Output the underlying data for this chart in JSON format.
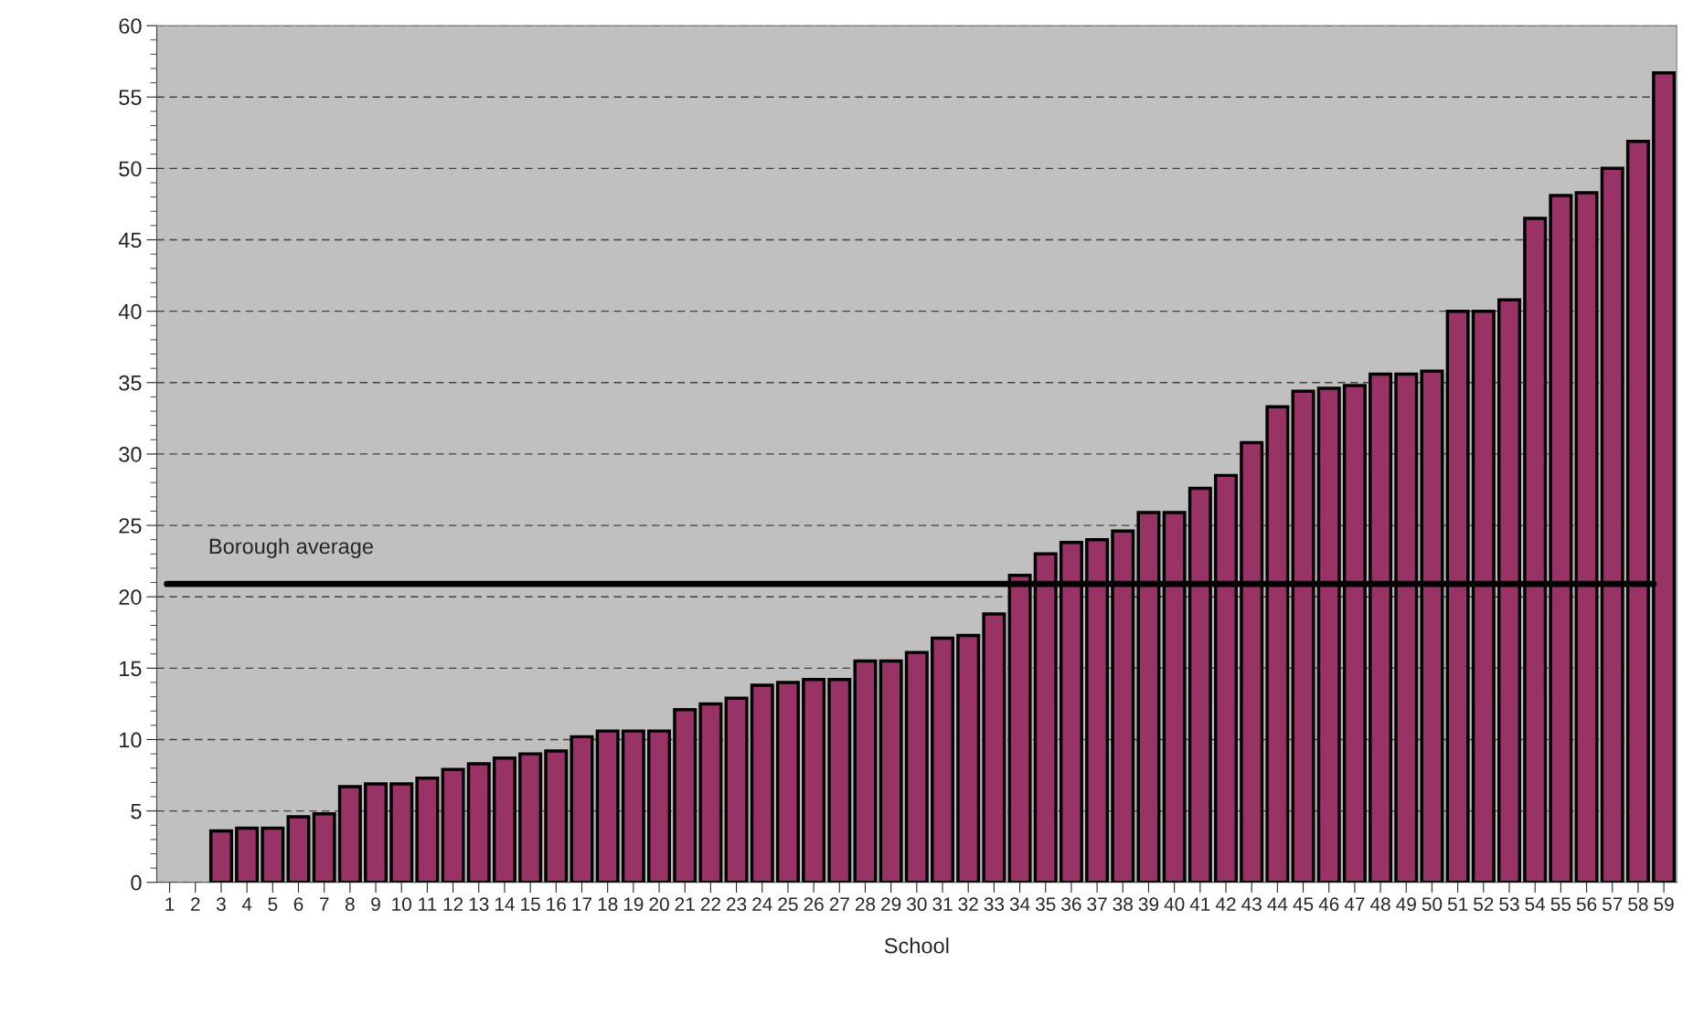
{
  "chart_data": {
    "type": "bar",
    "xlabel": "School",
    "categories": [
      "1",
      "2",
      "3",
      "4",
      "5",
      "6",
      "7",
      "8",
      "9",
      "10",
      "11",
      "12",
      "13",
      "14",
      "15",
      "16",
      "17",
      "18",
      "19",
      "20",
      "21",
      "22",
      "23",
      "24",
      "25",
      "26",
      "27",
      "28",
      "29",
      "30",
      "31",
      "32",
      "33",
      "34",
      "35",
      "36",
      "37",
      "38",
      "39",
      "40",
      "41",
      "42",
      "43",
      "44",
      "45",
      "46",
      "47",
      "48",
      "49",
      "50",
      "51",
      "52",
      "53",
      "54",
      "55",
      "56",
      "57",
      "58",
      "59"
    ],
    "values": [
      0,
      0,
      3.6,
      3.8,
      3.8,
      4.6,
      4.8,
      6.7,
      6.9,
      6.9,
      7.3,
      7.9,
      8.3,
      8.7,
      9.0,
      9.2,
      10.2,
      10.6,
      10.6,
      10.6,
      12.1,
      12.5,
      12.9,
      13.8,
      14.0,
      14.2,
      14.2,
      15.5,
      15.5,
      16.1,
      17.1,
      17.3,
      18.8,
      21.5,
      23.0,
      23.8,
      24.0,
      24.6,
      25.9,
      25.9,
      27.6,
      28.5,
      30.8,
      33.3,
      34.4,
      34.6,
      34.8,
      35.6,
      35.6,
      35.8,
      40.0,
      40.0,
      40.8,
      46.5,
      48.1,
      48.3,
      50.0,
      51.9,
      56.7
    ],
    "color": "#993366",
    "ylim": [
      0,
      60
    ],
    "yticks": [
      0,
      5,
      10,
      15,
      20,
      25,
      30,
      35,
      40,
      45,
      50,
      55,
      60
    ],
    "grid": "y",
    "ref_lines": [
      {
        "axis": "y",
        "value": 20.9,
        "label": "Borough average",
        "color": "#000000",
        "line_style": "solid"
      }
    ]
  }
}
